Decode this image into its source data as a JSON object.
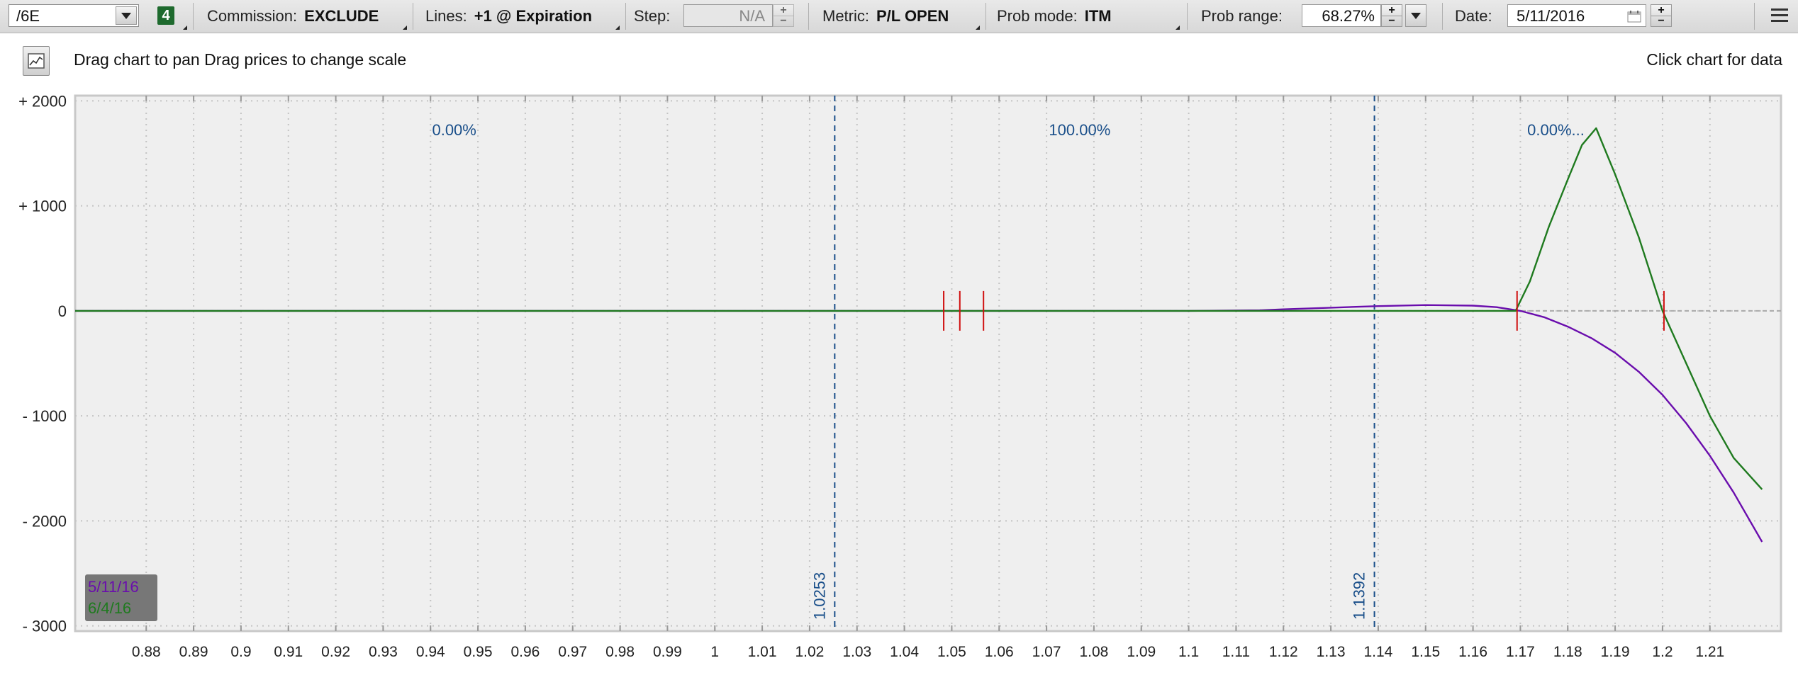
{
  "toolbar": {
    "symbol": "/6E",
    "badge": "4",
    "commission_label": "Commission:",
    "commission_value": "EXCLUDE",
    "lines_label": "Lines:",
    "lines_value": "+1 @ Expiration",
    "step_label": "Step:",
    "step_value": "N/A",
    "metric_label": "Metric:",
    "metric_value": "P/L OPEN",
    "prob_mode_label": "Prob mode:",
    "prob_mode_value": "ITM",
    "prob_range_label": "Prob range:",
    "prob_range_value": "68.27%",
    "date_label": "Date:",
    "date_value": "5/11/2016",
    "spin_plus": "+",
    "spin_minus": "−"
  },
  "hint": {
    "left": "Drag chart to pan Drag prices to change scale",
    "right": "Click chart for data"
  },
  "chart_data": {
    "type": "line",
    "title": "",
    "xlabel": "",
    "ylabel": "P/L OPEN",
    "xlim": [
      0.865,
      1.225
    ],
    "ylim": [
      -3050,
      2050
    ],
    "x_ticks": [
      0.88,
      0.89,
      0.9,
      0.91,
      0.92,
      0.93,
      0.94,
      0.95,
      0.96,
      0.97,
      0.98,
      0.99,
      1,
      1.01,
      1.02,
      1.03,
      1.04,
      1.05,
      1.06,
      1.07,
      1.08,
      1.09,
      1.1,
      1.11,
      1.12,
      1.13,
      1.14,
      1.15,
      1.16,
      1.17,
      1.18,
      1.19,
      1.2,
      1.21
    ],
    "x_tick_labels": [
      "0.88",
      "0.89",
      "0.9",
      "0.91",
      "0.92",
      "0.93",
      "0.94",
      "0.95",
      "0.96",
      "0.97",
      "0.98",
      "0.99",
      "1",
      "1.01",
      "1.02",
      "1.03",
      "1.04",
      "1.05",
      "1.06",
      "1.07",
      "1.08",
      "1.09",
      "1.1",
      "1.11",
      "1.12",
      "1.13",
      "1.14",
      "1.15",
      "1.16",
      "1.17",
      "1.18",
      "1.19",
      "1.2",
      "1.21"
    ],
    "y_ticks": [
      2000,
      1000,
      0,
      -1000,
      -2000,
      -3000
    ],
    "y_tick_labels": [
      "+ 2000",
      "+ 1000",
      "0",
      "- 1000",
      "- 2000",
      "- 3000"
    ],
    "prob_lines": [
      {
        "value": 1.0253,
        "label": "1.0253"
      },
      {
        "value": 1.1392,
        "label": "1.1392"
      }
    ],
    "prob_regions": [
      {
        "label": "0.00%",
        "x": 0.945
      },
      {
        "label": "100.00%",
        "x": 1.077
      },
      {
        "label": "0.00%...",
        "x": 1.1775
      }
    ],
    "markers": [
      1.0483,
      1.0517,
      1.0567,
      1.1693,
      1.2003
    ],
    "series": [
      {
        "name": "5/11/16",
        "color": "#6a0dad",
        "x": [
          0.865,
          1.1,
          1.115,
          1.12,
          1.13,
          1.14,
          1.15,
          1.16,
          1.165,
          1.17,
          1.175,
          1.18,
          1.185,
          1.19,
          1.195,
          1.2,
          1.205,
          1.21,
          1.215,
          1.221
        ],
        "y": [
          0,
          0,
          5,
          15,
          30,
          45,
          55,
          50,
          35,
          0,
          -60,
          -150,
          -260,
          -400,
          -580,
          -800,
          -1070,
          -1380,
          -1730,
          -2200
        ]
      },
      {
        "name": "6/4/16",
        "color": "#1f7a1f",
        "x": [
          0.865,
          1.169,
          1.172,
          1.176,
          1.18,
          1.183,
          1.186,
          1.19,
          1.195,
          1.2,
          1.205,
          1.21,
          1.215,
          1.221
        ],
        "y": [
          0,
          0,
          280,
          800,
          1250,
          1580,
          1740,
          1300,
          700,
          0,
          -500,
          -1000,
          -1400,
          -1700
        ]
      }
    ],
    "legend": {
      "position": "bottom-left",
      "entries": [
        "5/11/16",
        "6/4/16"
      ]
    },
    "grid": true
  },
  "colors": {
    "plot_bg": "#efefef",
    "prob_line": "#1a4f8a",
    "marker": "#d01010",
    "zero_line": "#aaaaaa"
  }
}
